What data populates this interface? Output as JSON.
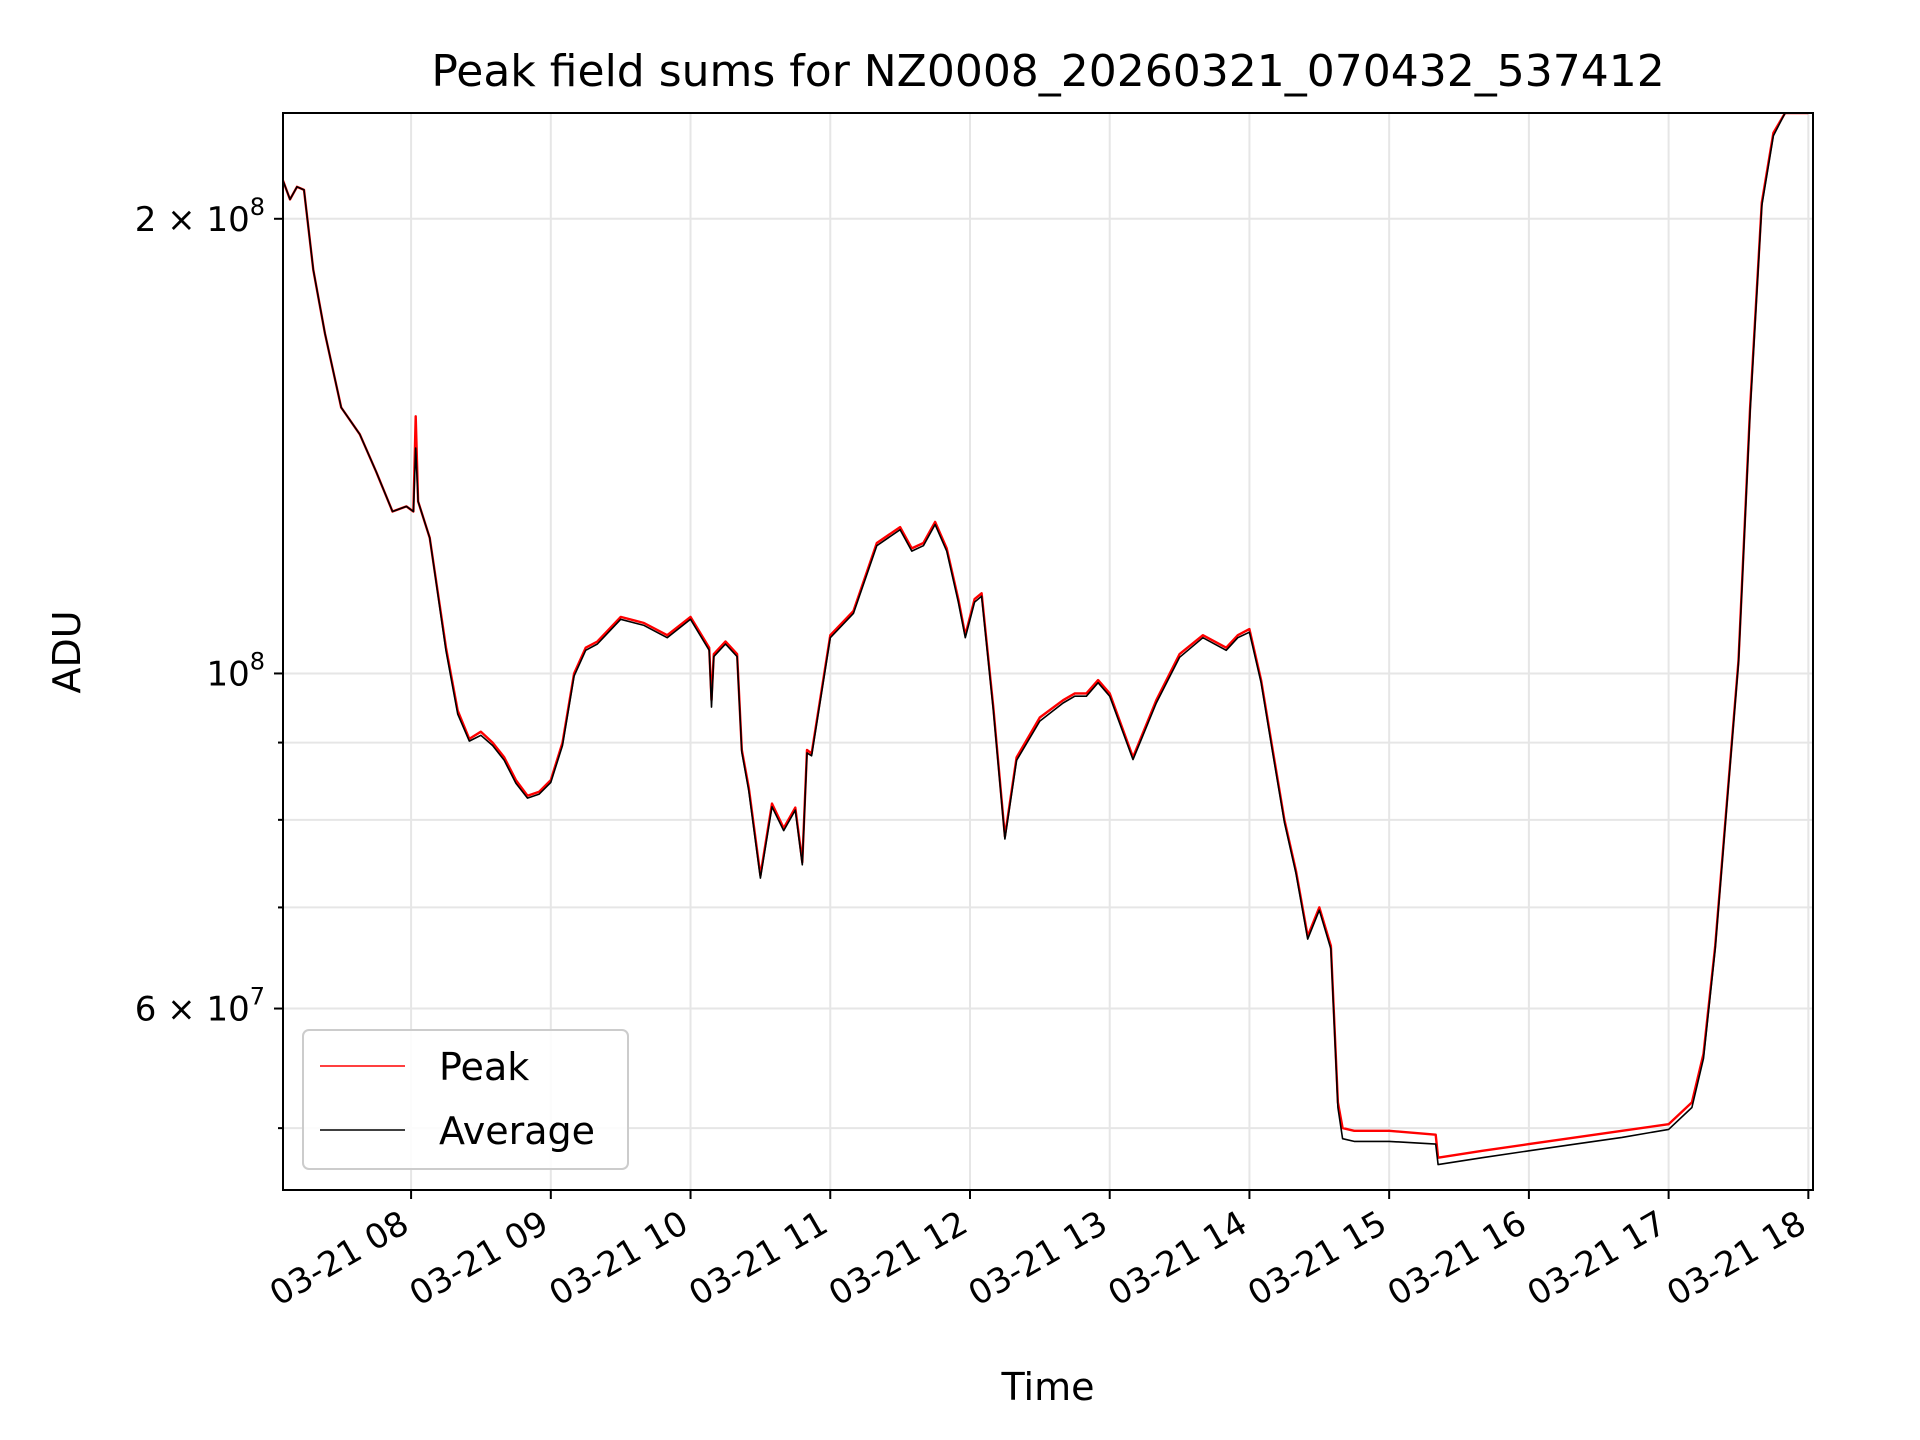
{
  "chart_data": {
    "type": "line",
    "title": "Peak field sums for NZ0008_20260321_070432_537412",
    "xlabel": "Time",
    "ylabel": "ADU",
    "yscale": "log",
    "xlim": [
      "2026-03-21 07:05",
      "2026-03-21 18:02"
    ],
    "ylim": [
      45500000,
      235000000
    ],
    "grid": true,
    "legend_position": "lower-left",
    "x_tick_labels": [
      "03-21 08",
      "03-21 09",
      "03-21 10",
      "03-21 11",
      "03-21 12",
      "03-21 13",
      "03-21 14",
      "03-21 15",
      "03-21 16",
      "03-21 17",
      "03-21 18"
    ],
    "y_tick_labels": [
      "2 × 10^8",
      "10^8",
      "6 × 10^7"
    ],
    "x": [
      "07:05",
      "07:08",
      "07:11",
      "07:14",
      "07:18",
      "07:23",
      "07:30",
      "07:38",
      "07:45",
      "07:52",
      "07:58",
      "08:01",
      "08:02",
      "08:03",
      "08:08",
      "08:15",
      "08:20",
      "08:25",
      "08:30",
      "08:35",
      "08:40",
      "08:45",
      "08:50",
      "08:55",
      "09:00",
      "09:05",
      "09:10",
      "09:15",
      "09:20",
      "09:30",
      "09:40",
      "09:50",
      "10:00",
      "10:08",
      "10:09",
      "10:10",
      "10:15",
      "10:20",
      "10:22",
      "10:25",
      "10:30",
      "10:35",
      "10:40",
      "10:45",
      "10:48",
      "10:50",
      "10:52",
      "11:00",
      "11:10",
      "11:20",
      "11:30",
      "11:35",
      "11:40",
      "11:45",
      "11:50",
      "11:55",
      "11:58",
      "12:02",
      "12:05",
      "12:10",
      "12:15",
      "12:20",
      "12:30",
      "12:40",
      "12:45",
      "12:50",
      "12:55",
      "13:00",
      "13:10",
      "13:20",
      "13:30",
      "13:40",
      "13:50",
      "13:55",
      "14:00",
      "14:05",
      "14:10",
      "14:15",
      "14:20",
      "14:25",
      "14:30",
      "14:35",
      "14:38",
      "14:40",
      "14:45",
      "15:00",
      "15:20",
      "15:21",
      "15:40",
      "16:00",
      "16:20",
      "16:40",
      "17:00",
      "17:10",
      "17:15",
      "17:20",
      "17:25",
      "17:30",
      "17:35",
      "17:40",
      "17:45",
      "17:50",
      "17:55",
      "18:00"
    ],
    "series": [
      {
        "name": "Peak",
        "color": "#ff0000",
        "values": [
          212000000.0,
          206000000.0,
          210000000.0,
          209000000.0,
          185000000.0,
          168000000.0,
          150000000.0,
          144000000.0,
          136000000.0,
          128000000.0,
          129000000.0,
          128000000.0,
          148000000.0,
          130000000.0,
          123000000.0,
          104000000.0,
          94500000.0,
          90500000.0,
          91500000.0,
          90000000.0,
          88000000.0,
          85000000.0,
          83000000.0,
          83500000.0,
          85000000.0,
          90000000.0,
          100000000.0,
          104000000.0,
          105000000.0,
          109000000.0,
          108000000.0,
          106000000.0,
          109000000.0,
          104000000.0,
          96000000.0,
          103000000.0,
          105000000.0,
          103000000.0,
          89000000.0,
          84000000.0,
          73500000.0,
          82000000.0,
          79000000.0,
          81500000.0,
          75000000.0,
          89000000.0,
          88500000.0,
          106000000.0,
          110000000.0,
          122000000.0,
          125000000.0,
          121000000.0,
          122000000.0,
          126000000.0,
          121000000.0,
          112000000.0,
          106000000.0,
          112000000.0,
          113000000.0,
          95000000.0,
          78000000.0,
          88000000.0,
          93500000.0,
          96000000.0,
          97000000.0,
          97000000.0,
          99000000.0,
          97000000.0,
          88000000.0,
          96000000.0,
          103000000.0,
          106000000.0,
          104000000.0,
          106000000.0,
          107000000.0,
          99000000.0,
          89000000.0,
          80000000.0,
          74000000.0,
          67000000.0,
          70000000.0,
          66000000.0,
          52000000.0,
          50000000.0,
          49800000.0,
          49800000.0,
          49500000.0,
          47800000.0,
          48300000.0,
          48800000.0,
          49300000.0,
          49800000.0,
          50300000.0,
          52000000.0,
          56000000.0,
          66000000.0,
          82000000.0,
          102000000.0,
          150000000.0,
          205000000.0,
          228000000.0,
          235000000.0,
          235000000.0,
          235000000.0
        ]
      },
      {
        "name": "Average",
        "color": "#000000",
        "values": [
          212000000.0,
          206000000.0,
          210000000.0,
          209000000.0,
          185000000.0,
          168000000.0,
          150000000.0,
          144000000.0,
          136000000.0,
          128000000.0,
          129000000.0,
          128000000.0,
          141000000.0,
          130000000.0,
          123000000.0,
          103500000.0,
          94000000.0,
          90200000.0,
          91000000.0,
          89600000.0,
          87600000.0,
          84600000.0,
          82700000.0,
          83200000.0,
          84700000.0,
          89600000.0,
          99600000.0,
          103600000.0,
          104600000.0,
          108600000.0,
          107600000.0,
          105600000.0,
          108600000.0,
          103600000.0,
          95000000.0,
          102600000.0,
          104600000.0,
          102600000.0,
          88700000.0,
          83600000.0,
          73200000.0,
          81600000.0,
          78700000.0,
          81200000.0,
          74700000.0,
          88600000.0,
          88200000.0,
          105600000.0,
          109600000.0,
          121500000.0,
          124500000.0,
          120500000.0,
          121500000.0,
          125500000.0,
          120500000.0,
          111500000.0,
          105600000.0,
          111500000.0,
          112500000.0,
          94600000.0,
          77700000.0,
          87600000.0,
          93000000.0,
          95600000.0,
          96600000.0,
          96600000.0,
          98600000.0,
          96600000.0,
          87700000.0,
          95600000.0,
          102500000.0,
          105600000.0,
          103600000.0,
          105600000.0,
          106500000.0,
          98600000.0,
          88600000.0,
          79700000.0,
          73700000.0,
          66700000.0,
          69700000.0,
          65700000.0,
          51600000.0,
          49200000.0,
          49000000.0,
          49000000.0,
          48800000.0,
          47300000.0,
          47800000.0,
          48300000.0,
          48800000.0,
          49300000.0,
          49900000.0,
          51600000.0,
          55600000.0,
          65700000.0,
          81700000.0,
          101600000.0,
          149000000.0,
          204000000.0,
          227000000.0,
          235000000.0,
          235000000.0,
          235000000.0
        ]
      }
    ]
  }
}
